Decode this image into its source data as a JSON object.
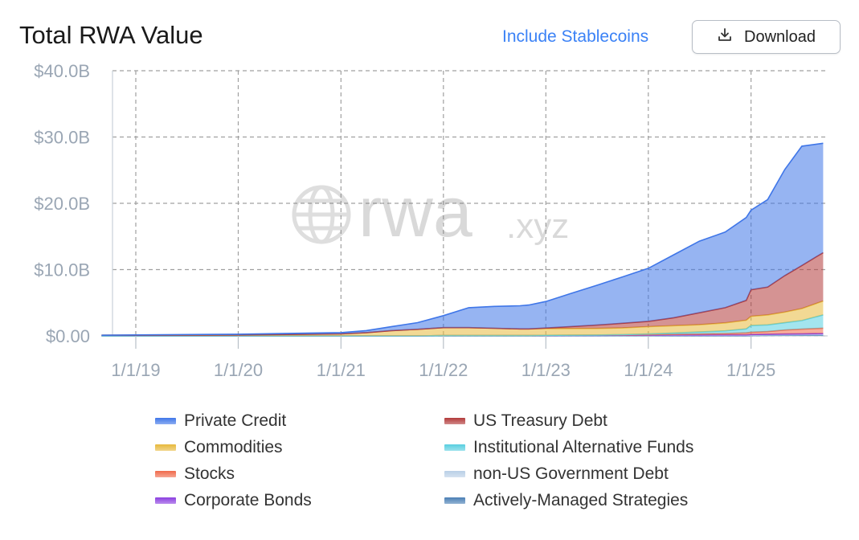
{
  "header": {
    "title": "Total RWA Value",
    "include_stablecoins": "Include Stablecoins",
    "download": "Download",
    "download_icon": "download-icon"
  },
  "watermark": {
    "text": "rwa",
    "suffix": ".xyz",
    "icon": "globe-icon"
  },
  "chart_data": {
    "type": "area",
    "stacked": true,
    "x_unit": "date",
    "x_ticks": [
      "1/1/19",
      "1/1/20",
      "1/1/21",
      "1/1/22",
      "1/1/23",
      "1/1/24",
      "1/1/25"
    ],
    "y_ticks": [
      "$0.00",
      "$10.0B",
      "$20.0B",
      "$30.0B",
      "$40.0B"
    ],
    "ylim": [
      0,
      40
    ],
    "y_unit": "$B",
    "grid": true,
    "legend_position": "bottom",
    "x": [
      "2018-09-01",
      "2019-01-01",
      "2020-01-01",
      "2021-01-01",
      "2021-04-01",
      "2021-07-01",
      "2021-10-01",
      "2022-01-01",
      "2022-04-01",
      "2022-07-01",
      "2022-10-01",
      "2022-11-01",
      "2023-01-01",
      "2023-04-01",
      "2023-07-01",
      "2023-10-01",
      "2024-01-01",
      "2024-04-01",
      "2024-07-01",
      "2024-10-01",
      "2024-12-15",
      "2025-01-01",
      "2025-03-01",
      "2025-05-01",
      "2025-07-01",
      "2025-09-15"
    ],
    "series": [
      {
        "name": "Actively-Managed Strategies",
        "color": "#4a7fb5",
        "values": [
          0,
          0,
          0,
          0,
          0,
          0,
          0,
          0,
          0,
          0,
          0,
          0,
          0,
          0,
          0,
          0,
          0,
          0,
          0,
          0,
          0,
          0.05,
          0.08,
          0.1,
          0.12,
          0.15
        ]
      },
      {
        "name": "non-US Government Debt",
        "color": "#b9cfe6",
        "values": [
          0,
          0,
          0,
          0,
          0,
          0,
          0,
          0.05,
          0.05,
          0.05,
          0.05,
          0.05,
          0.05,
          0.05,
          0.05,
          0.05,
          0.05,
          0.06,
          0.06,
          0.06,
          0.06,
          0.06,
          0.06,
          0.06,
          0.06,
          0.06
        ]
      },
      {
        "name": "Corporate Bonds",
        "color": "#8b3fe0",
        "values": [
          0,
          0,
          0,
          0,
          0,
          0,
          0,
          0,
          0,
          0,
          0,
          0,
          0.02,
          0.03,
          0.04,
          0.05,
          0.06,
          0.08,
          0.08,
          0.1,
          0.1,
          0.1,
          0.12,
          0.13,
          0.14,
          0.15
        ]
      },
      {
        "name": "Stocks",
        "color": "#f06a4a",
        "values": [
          0,
          0,
          0,
          0,
          0,
          0,
          0,
          0,
          0,
          0,
          0,
          0,
          0.02,
          0.03,
          0.04,
          0.05,
          0.08,
          0.1,
          0.15,
          0.2,
          0.3,
          0.35,
          0.4,
          0.6,
          0.7,
          0.8
        ]
      },
      {
        "name": "Institutional Alternative Funds",
        "color": "#58cfe0",
        "values": [
          0,
          0,
          0,
          0,
          0,
          0,
          0,
          0,
          0,
          0,
          0,
          0,
          0,
          0,
          0,
          0.05,
          0.1,
          0.2,
          0.3,
          0.4,
          0.6,
          1.0,
          1.0,
          1.1,
          1.3,
          2.0
        ]
      },
      {
        "name": "Commodities",
        "color": "#e7b93c",
        "values": [
          0.1,
          0.1,
          0.15,
          0.3,
          0.5,
          0.8,
          1.0,
          1.2,
          1.2,
          1.1,
          1.0,
          1.0,
          1.0,
          1.0,
          1.0,
          1.0,
          1.1,
          1.1,
          1.1,
          1.2,
          1.3,
          1.4,
          1.5,
          1.6,
          1.8,
          2.1
        ]
      },
      {
        "name": "US Treasury Debt",
        "color": "#b23a3a",
        "values": [
          0,
          0,
          0,
          0,
          0,
          0,
          0,
          0,
          0,
          0,
          0,
          0,
          0.1,
          0.3,
          0.5,
          0.7,
          0.8,
          1.2,
          1.8,
          2.3,
          3.0,
          4.0,
          4.2,
          5.5,
          6.5,
          7.3
        ]
      },
      {
        "name": "Private Credit",
        "color": "#3f76e8",
        "values": [
          0,
          0.05,
          0.1,
          0.2,
          0.3,
          0.6,
          1.0,
          1.8,
          3.0,
          3.3,
          3.5,
          3.6,
          4.0,
          5.0,
          6.0,
          7.0,
          8.0,
          9.5,
          10.8,
          11.4,
          12.5,
          12.0,
          13.2,
          16.0,
          18.0,
          16.5
        ]
      }
    ]
  },
  "legend": [
    {
      "label": "Private Credit",
      "color": "#3f76e8"
    },
    {
      "label": "US Treasury Debt",
      "color": "#b23a3a"
    },
    {
      "label": "Commodities",
      "color": "#e7b93c"
    },
    {
      "label": "Institutional Alternative Funds",
      "color": "#58cfe0"
    },
    {
      "label": "Stocks",
      "color": "#f06a4a"
    },
    {
      "label": "non-US Government Debt",
      "color": "#b9cfe6"
    },
    {
      "label": "Corporate Bonds",
      "color": "#8b3fe0"
    },
    {
      "label": "Actively-Managed Strategies",
      "color": "#4a7fb5"
    }
  ]
}
